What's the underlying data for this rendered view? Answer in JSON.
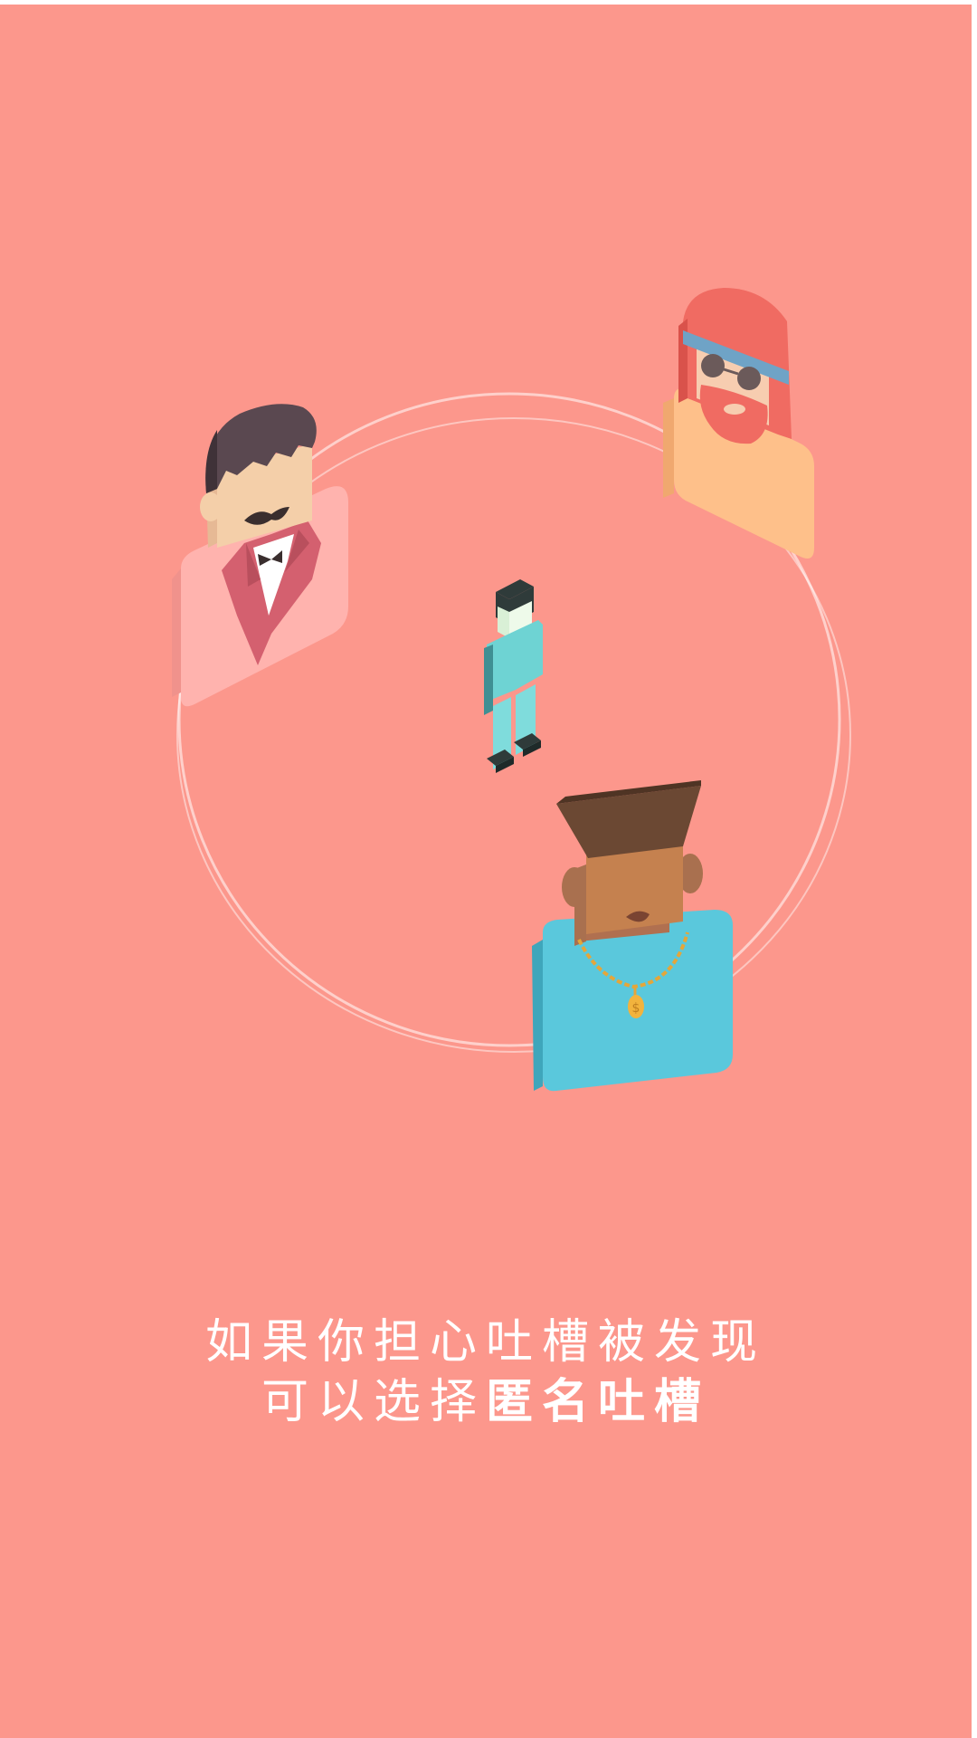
{
  "screen": {
    "background_color": "#fc978c",
    "frame_color": "#ffffff"
  },
  "illustration": {
    "ring_color": "#ffffff",
    "characters": [
      {
        "name": "mustache-gentleman",
        "icon": "gentleman-avatar-icon",
        "card_color": "#ffb3ae"
      },
      {
        "name": "hippie-sunglasses",
        "icon": "hippie-avatar-icon",
        "card_color": "#fec08a"
      },
      {
        "name": "center-figure",
        "icon": "standing-person-icon",
        "body_color": "#6ed3d3"
      },
      {
        "name": "gold-chain-man",
        "icon": "gold-chain-avatar-icon",
        "card_color": "#5ac8dc"
      }
    ]
  },
  "caption": {
    "line1": "如果你担心吐槽被发现",
    "line2_regular": "可以选择",
    "line2_bold": "匿名吐槽",
    "color": "#ffffff"
  }
}
